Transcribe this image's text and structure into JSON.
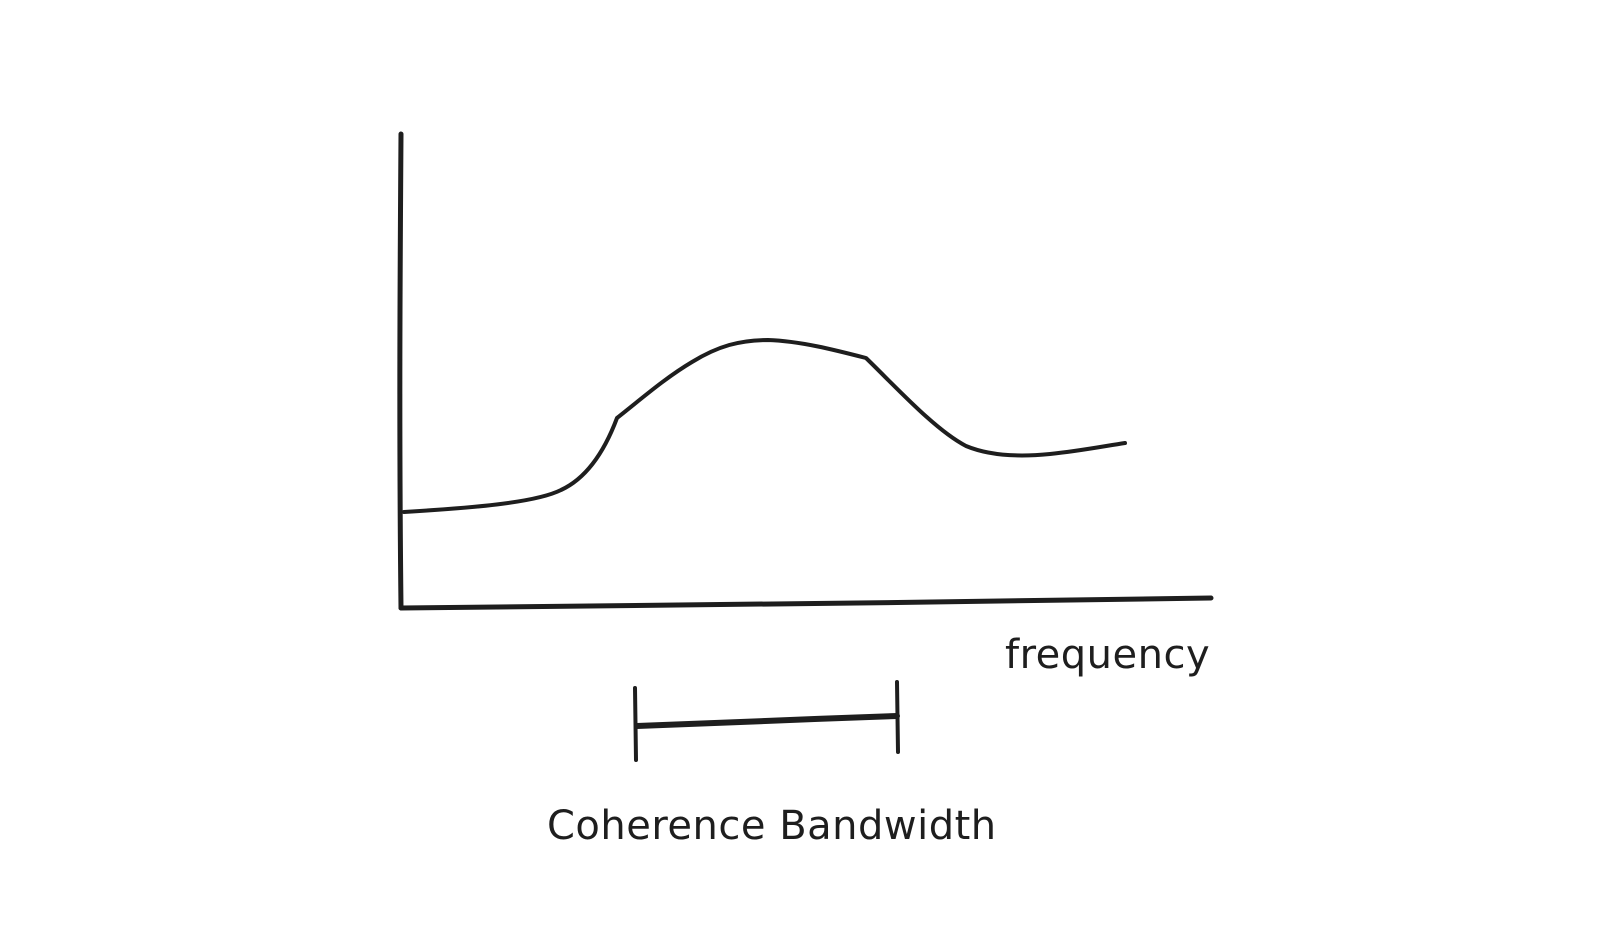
{
  "diagram": {
    "x_axis_label": "frequency",
    "bandwidth_label": "Coherence Bandwidth",
    "stroke_color": "#1e1e1e",
    "background_color": "#ffffff"
  }
}
